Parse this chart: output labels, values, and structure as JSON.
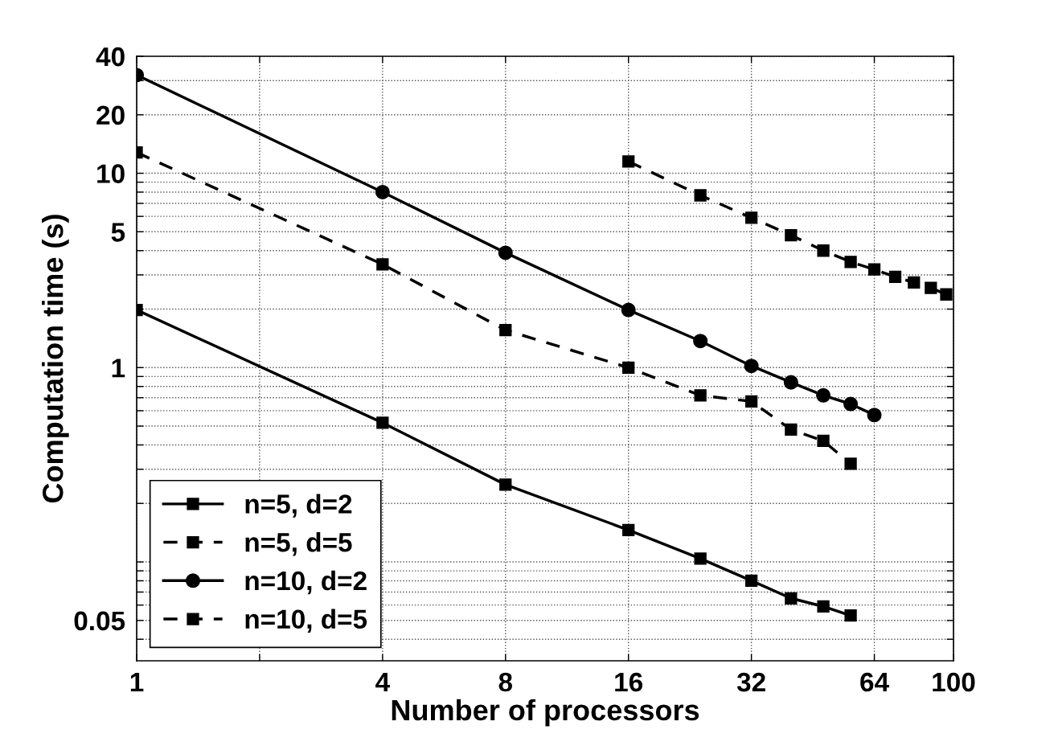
{
  "chart_data": {
    "type": "line",
    "xlabel": "Number of processors",
    "ylabel": "Computation time (s)",
    "log": "xy",
    "grid": true,
    "legend": "bottom left",
    "xlim": [
      1,
      100
    ],
    "xticks": [
      1,
      {
        "value": 2,
        "label": null
      },
      4,
      8,
      16,
      32,
      64,
      100
    ],
    "ylim": [
      0.031,
      40
    ],
    "yticks": [
      0.05,
      {
        "value": 0.04,
        "label": null
      },
      {
        "value": 0.06,
        "label": null
      },
      {
        "value": 0.07,
        "label": null
      },
      {
        "value": 0.08,
        "label": null
      },
      {
        "value": 0.09,
        "label": null
      },
      {
        "value": 0.1,
        "label": null
      },
      {
        "value": 0.2,
        "label": null
      },
      {
        "value": 0.3,
        "label": null
      },
      {
        "value": 0.4,
        "label": null
      },
      {
        "value": 0.5,
        "label": null
      },
      {
        "value": 0.6,
        "label": null
      },
      {
        "value": 0.7,
        "label": null
      },
      {
        "value": 0.8,
        "label": null
      },
      {
        "value": 0.9,
        "label": null
      },
      1,
      {
        "value": 2,
        "label": null
      },
      {
        "value": 3,
        "label": null
      },
      {
        "value": 4,
        "label": null
      },
      5,
      {
        "value": 6,
        "label": null
      },
      {
        "value": 7,
        "label": null
      },
      {
        "value": 8,
        "label": null
      },
      {
        "value": 9,
        "label": null
      },
      10,
      20,
      {
        "value": 30,
        "label": null
      },
      40
    ],
    "series": [
      {
        "name": "n=5, d=2",
        "color": "#000000",
        "marker": "square",
        "line_style": "solid",
        "x": [
          1,
          4,
          8,
          16,
          24,
          32,
          40,
          48,
          56
        ],
        "values": [
          1.98,
          0.52,
          0.25,
          0.146,
          0.104,
          0.08,
          0.065,
          0.059,
          0.053
        ]
      },
      {
        "name": "n=5, d=5",
        "color": "#000000",
        "marker": "square",
        "line_style": "dashed",
        "x": [
          1,
          4,
          8,
          16,
          24,
          32,
          40,
          48,
          56
        ],
        "values": [
          12.8,
          3.4,
          1.56,
          1.0,
          0.72,
          0.67,
          0.48,
          0.42,
          0.32
        ]
      },
      {
        "name": "n=10, d=2",
        "color": "#000000",
        "marker": "circle",
        "line_style": "solid",
        "x": [
          1,
          4,
          8,
          16,
          24,
          32,
          40,
          48,
          56,
          64
        ],
        "values": [
          32,
          8.0,
          3.9,
          1.98,
          1.37,
          1.02,
          0.84,
          0.72,
          0.65,
          0.57
        ]
      },
      {
        "name": "n=10, d=5",
        "color": "#000000",
        "marker": "square",
        "line_style": "dashed",
        "x": [
          16,
          24,
          32,
          40,
          48,
          56,
          64,
          72,
          80,
          88,
          96
        ],
        "values": [
          11.5,
          7.7,
          5.9,
          4.8,
          4.0,
          3.5,
          3.2,
          2.93,
          2.74,
          2.57,
          2.38
        ]
      }
    ]
  }
}
